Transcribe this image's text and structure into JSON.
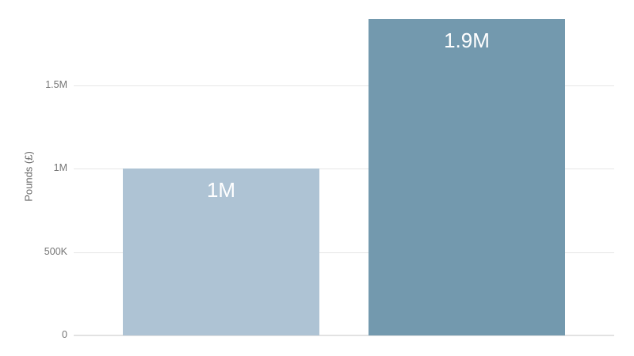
{
  "chart_data": {
    "type": "bar",
    "values": [
      1000000,
      1900000
    ],
    "bar_labels": [
      "1M",
      "1.9M"
    ],
    "bar_colors": [
      "#aec3d4",
      "#7399ae"
    ],
    "title": "",
    "xlabel": "",
    "ylabel": "Pounds (£)",
    "ylim": [
      0,
      2000000
    ],
    "yticks": [
      {
        "label": "0",
        "value": 0
      },
      {
        "label": "500K",
        "value": 500000
      },
      {
        "label": "1M",
        "value": 1000000
      },
      {
        "label": "1.5M",
        "value": 1500000
      }
    ],
    "grid": true,
    "legend": false,
    "x_axis_labels_visible": false
  },
  "colors": {
    "background": "#ffffff",
    "gridline": "#e6e6e6",
    "axis_line": "#e2e2e2",
    "tick_label": "#757575",
    "axis_title": "#696969",
    "value_label": "#ffffff"
  }
}
